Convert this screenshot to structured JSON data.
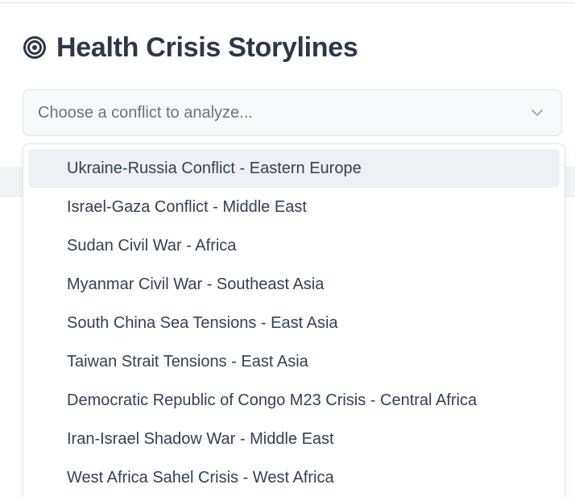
{
  "header": {
    "title": "Health Crisis Storylines",
    "icon": "target-icon"
  },
  "conflict_select": {
    "placeholder": "Choose a conflict to analyze...",
    "icon": "chevron-down-icon",
    "expanded": true,
    "highlighted_index": 0,
    "options": [
      "Ukraine-Russia Conflict - Eastern Europe",
      "Israel-Gaza Conflict - Middle East",
      "Sudan Civil War - Africa",
      "Myanmar Civil War - Southeast Asia",
      "South China Sea Tensions - East Asia",
      "Taiwan Strait Tensions - East Asia",
      "Democratic Republic of Congo M23 Crisis - Central Africa",
      "Iran-Israel Shadow War - Middle East",
      "West Africa Sahel Crisis - West Africa"
    ]
  },
  "colors": {
    "title": "#2d3748",
    "icon": "#2d3748",
    "placeholder": "#6b7280",
    "option_text": "#344054",
    "highlight_bg": "#eef0f3",
    "select_bg": "#f8f9fa",
    "border": "#dfe3e8"
  }
}
